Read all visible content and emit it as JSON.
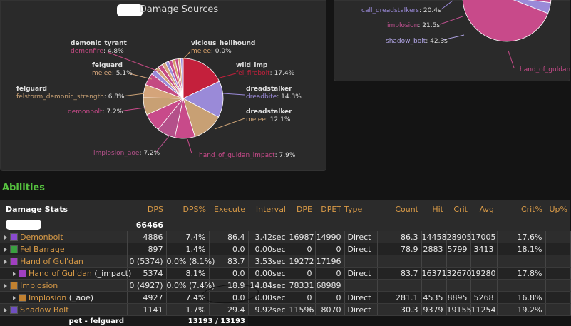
{
  "main_chart": {
    "title": "Damage Sources",
    "labels": [
      {
        "name": "demonic_tyrant",
        "spell": "demonfire",
        "value": "4.8%"
      },
      {
        "name": "vicious_hellhound",
        "spell": "melee",
        "value": "0.0%"
      },
      {
        "name": "felguard",
        "spell": "melee",
        "value": "5.1%"
      },
      {
        "name": "wild_imp",
        "spell": "fel_firebolt",
        "value": "17.4%"
      },
      {
        "name": "felguard",
        "spell": "felstorm_demonic_strength",
        "value": "6.8%"
      },
      {
        "name": "dreadstalker",
        "spell": "dreadbite",
        "value": "14.3%"
      },
      {
        "name": "",
        "spell": "demonbolt",
        "value": "7.2%"
      },
      {
        "name": "dreadstalker",
        "spell": "melee",
        "value": "12.1%"
      },
      {
        "name": "",
        "spell": "implosion_aoe",
        "value": "7.2%"
      },
      {
        "name": "",
        "spell": "hand_of_guldan_impact",
        "value": "7.9%"
      }
    ]
  },
  "right_chart": {
    "labels": [
      {
        "spell": "call_dreadstalkers",
        "value": "20.4s"
      },
      {
        "spell": "implosion",
        "value": "21.5s"
      },
      {
        "spell": "shadow_bolt",
        "value": "42.3s"
      },
      {
        "spell": "hand_of_guldan",
        "value": ""
      }
    ]
  },
  "chart_data": [
    {
      "type": "pie",
      "title": "Damage Sources",
      "slices": [
        {
          "label": "wild_imp: fel_firebolt",
          "value": 17.4,
          "color": "#c4203c"
        },
        {
          "label": "dreadstalker: dreadbite",
          "value": 14.3,
          "color": "#9a8ad8"
        },
        {
          "label": "dreadstalker: melee",
          "value": 12.1,
          "color": "#c8a074"
        },
        {
          "label": "hand_of_guldan_impact",
          "value": 7.9,
          "color": "#c84a8a"
        },
        {
          "label": "implosion_aoe",
          "value": 7.2,
          "color": "#b4508a"
        },
        {
          "label": "demonbolt",
          "value": 7.2,
          "color": "#c84a8a"
        },
        {
          "label": "felguard: felstorm_demonic_strength",
          "value": 6.8,
          "color": "#c8a074"
        },
        {
          "label": "felguard: melee",
          "value": 5.1,
          "color": "#d4a47a"
        },
        {
          "label": "demonic_tyrant: demonfire",
          "value": 4.8,
          "color": "#c44a82"
        },
        {
          "label": "vicious_hellhound: melee",
          "value": 0.0,
          "color": "#d6a06a"
        }
      ]
    },
    {
      "type": "pie",
      "slices": [
        {
          "label": "call_dreadstalkers",
          "value": 20.4,
          "color": "#9a8ad8"
        },
        {
          "label": "implosion",
          "value": 21.5,
          "color": "#c05090"
        },
        {
          "label": "shadow_bolt",
          "value": 42.3,
          "color": "#b0a4e4"
        },
        {
          "label": "hand_of_guldan",
          "value": null,
          "color": "#c84a8a"
        }
      ]
    }
  ],
  "abilities": {
    "section_title": "Abilities",
    "headers": [
      "Damage Stats",
      "DPS",
      "DPS%",
      "Execute",
      "Interval",
      "DPE",
      "DPET",
      "Type",
      "Count",
      "Hit",
      "Crit",
      "Avg",
      "Crit%",
      "Up%"
    ],
    "total_dps": "66466",
    "rows": [
      {
        "name": "Demonbolt",
        "child": false,
        "icon_color": "#8a4ad0",
        "dps": "4886",
        "dpsp": "7.4%",
        "execute": "86.4",
        "interval": "3.42sec",
        "dpe": "16987",
        "dpet": "14990",
        "type": "Direct",
        "count": "86.3",
        "hit": "14458",
        "crit": "28905",
        "avg": "17005",
        "critp": "17.6%",
        "up": ""
      },
      {
        "name": "Fel Barrage",
        "child": false,
        "icon_color": "#3aa040",
        "dps": "897",
        "dpsp": "1.4%",
        "execute": "0.0",
        "interval": "0.00sec",
        "dpe": "0",
        "dpet": "0",
        "type": "Direct",
        "count": "78.9",
        "hit": "2883",
        "crit": "5799",
        "avg": "3413",
        "critp": "18.1%",
        "up": ""
      },
      {
        "name": "Hand of Gul'dan",
        "child": false,
        "icon_color": "#a040c0",
        "dps": "0 (5374)",
        "dpsp": "0.0% (8.1%)",
        "execute": "83.7",
        "interval": "3.53sec",
        "dpe": "19272",
        "dpet": "17196",
        "type": "",
        "count": "",
        "hit": "",
        "crit": "",
        "avg": "",
        "critp": "",
        "up": ""
      },
      {
        "name": "Hand of Gul'dan",
        "suffix": " (_impact)",
        "child": true,
        "icon_color": "#a040c0",
        "dps": "5374",
        "dpsp": "8.1%",
        "execute": "0.0",
        "interval": "0.00sec",
        "dpe": "0",
        "dpet": "0",
        "type": "Direct",
        "count": "83.7",
        "hit": "16371",
        "crit": "32670",
        "avg": "19280",
        "critp": "17.8%",
        "up": ""
      },
      {
        "name": "Implosion",
        "child": false,
        "icon_color": "#c08030",
        "dps": "0 (4927)",
        "dpsp": "0.0% (7.4%)",
        "execute": "18.9",
        "interval": "14.84sec",
        "dpe": "78331",
        "dpet": "68989",
        "type": "",
        "count": "",
        "hit": "",
        "crit": "",
        "avg": "",
        "critp": "",
        "up": ""
      },
      {
        "name": "Implosion",
        "suffix": " (_aoe)",
        "child": true,
        "icon_color": "#c08030",
        "dps": "4927",
        "dpsp": "7.4%",
        "execute": "0.0",
        "interval": "0.00sec",
        "dpe": "0",
        "dpet": "0",
        "type": "Direct",
        "count": "281.1",
        "hit": "4535",
        "crit": "8895",
        "avg": "5268",
        "critp": "16.8%",
        "up": ""
      },
      {
        "name": "Shadow Bolt",
        "child": false,
        "icon_color": "#7050c0",
        "dps": "1141",
        "dpsp": "1.7%",
        "execute": "29.4",
        "interval": "9.92sec",
        "dpe": "11596",
        "dpet": "8070",
        "type": "Direct",
        "count": "30.3",
        "hit": "9379",
        "crit": "19155",
        "avg": "11254",
        "critp": "19.2%",
        "up": ""
      }
    ],
    "pet_row": {
      "name": "pet - felguard",
      "value": "13193 / 13193"
    }
  }
}
